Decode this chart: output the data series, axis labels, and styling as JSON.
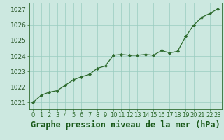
{
  "x": [
    0,
    1,
    2,
    3,
    4,
    5,
    6,
    7,
    8,
    9,
    10,
    11,
    12,
    13,
    14,
    15,
    16,
    17,
    18,
    19,
    20,
    21,
    22,
    23
  ],
  "y": [
    1021.0,
    1021.45,
    1021.65,
    1021.75,
    1022.1,
    1022.45,
    1022.65,
    1022.8,
    1023.2,
    1023.35,
    1024.05,
    1024.1,
    1024.05,
    1024.05,
    1024.1,
    1024.05,
    1024.35,
    1024.2,
    1024.3,
    1025.25,
    1026.0,
    1026.5,
    1026.75,
    1027.05
  ],
  "line_color": "#2d6a2d",
  "marker_color": "#2d6a2d",
  "bg_color": "#cce8e0",
  "grid_color": "#99ccc0",
  "xlabel": "Graphe pression niveau de la mer (hPa)",
  "xlabel_color": "#1a5a1a",
  "ylabel_ticks": [
    1021,
    1022,
    1023,
    1024,
    1025,
    1026,
    1027
  ],
  "ylim": [
    1020.55,
    1027.45
  ],
  "xlim": [
    -0.5,
    23.5
  ],
  "tick_label_color": "#2d5a2d",
  "axis_color": "#2d6a2d",
  "tick_fontsize": 6.5,
  "xlabel_fontsize": 8.5
}
